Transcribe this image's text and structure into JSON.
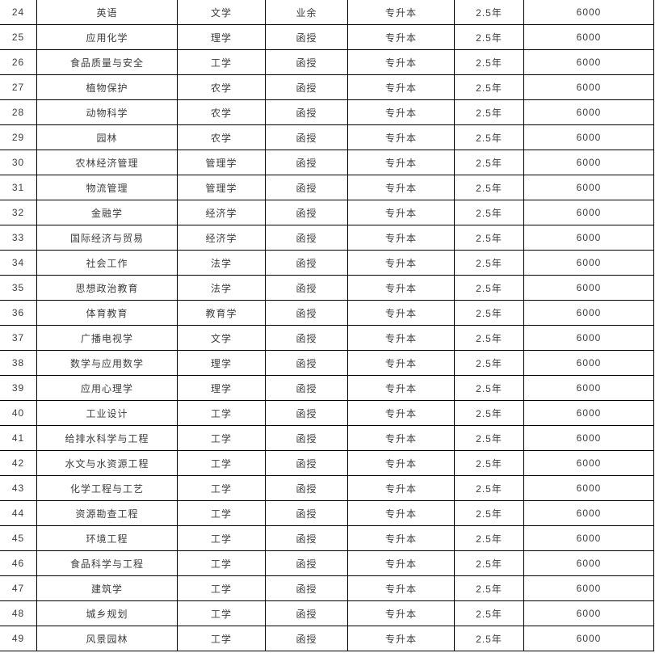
{
  "page": {
    "background_color": "#ffffff",
    "border_color": "#000000",
    "text_color": "#3d3d3d"
  },
  "table": {
    "columns": [
      "row-number",
      "major-name",
      "discipline-category",
      "study-form",
      "program-level",
      "study-duration",
      "tuition-fee"
    ],
    "rows": [
      [
        "24",
        "英语",
        "文学",
        "业余",
        "专升本",
        "2.5年",
        "6000"
      ],
      [
        "25",
        "应用化学",
        "理学",
        "函授",
        "专升本",
        "2.5年",
        "6000"
      ],
      [
        "26",
        "食品质量与安全",
        "工学",
        "函授",
        "专升本",
        "2.5年",
        "6000"
      ],
      [
        "27",
        "植物保护",
        "农学",
        "函授",
        "专升本",
        "2.5年",
        "6000"
      ],
      [
        "28",
        "动物科学",
        "农学",
        "函授",
        "专升本",
        "2.5年",
        "6000"
      ],
      [
        "29",
        "园林",
        "农学",
        "函授",
        "专升本",
        "2.5年",
        "6000"
      ],
      [
        "30",
        "农林经济管理",
        "管理学",
        "函授",
        "专升本",
        "2.5年",
        "6000"
      ],
      [
        "31",
        "物流管理",
        "管理学",
        "函授",
        "专升本",
        "2.5年",
        "6000"
      ],
      [
        "32",
        "金融学",
        "经济学",
        "函授",
        "专升本",
        "2.5年",
        "6000"
      ],
      [
        "33",
        "国际经济与贸易",
        "经济学",
        "函授",
        "专升本",
        "2.5年",
        "6000"
      ],
      [
        "34",
        "社会工作",
        "法学",
        "函授",
        "专升本",
        "2.5年",
        "6000"
      ],
      [
        "35",
        "思想政治教育",
        "法学",
        "函授",
        "专升本",
        "2.5年",
        "6000"
      ],
      [
        "36",
        "体育教育",
        "教育学",
        "函授",
        "专升本",
        "2.5年",
        "6000"
      ],
      [
        "37",
        "广播电视学",
        "文学",
        "函授",
        "专升本",
        "2.5年",
        "6000"
      ],
      [
        "38",
        "数学与应用数学",
        "理学",
        "函授",
        "专升本",
        "2.5年",
        "6000"
      ],
      [
        "39",
        "应用心理学",
        "理学",
        "函授",
        "专升本",
        "2.5年",
        "6000"
      ],
      [
        "40",
        "工业设计",
        "工学",
        "函授",
        "专升本",
        "2.5年",
        "6000"
      ],
      [
        "41",
        "给排水科学与工程",
        "工学",
        "函授",
        "专升本",
        "2.5年",
        "6000"
      ],
      [
        "42",
        "水文与水资源工程",
        "工学",
        "函授",
        "专升本",
        "2.5年",
        "6000"
      ],
      [
        "43",
        "化学工程与工艺",
        "工学",
        "函授",
        "专升本",
        "2.5年",
        "6000"
      ],
      [
        "44",
        "资源勘查工程",
        "工学",
        "函授",
        "专升本",
        "2.5年",
        "6000"
      ],
      [
        "45",
        "环境工程",
        "工学",
        "函授",
        "专升本",
        "2.5年",
        "6000"
      ],
      [
        "46",
        "食品科学与工程",
        "工学",
        "函授",
        "专升本",
        "2.5年",
        "6000"
      ],
      [
        "47",
        "建筑学",
        "工学",
        "函授",
        "专升本",
        "2.5年",
        "6000"
      ],
      [
        "48",
        "城乡规划",
        "工学",
        "函授",
        "专升本",
        "2.5年",
        "6000"
      ],
      [
        "49",
        "风景园林",
        "工学",
        "函授",
        "专升本",
        "2.5年",
        "6000"
      ]
    ]
  }
}
